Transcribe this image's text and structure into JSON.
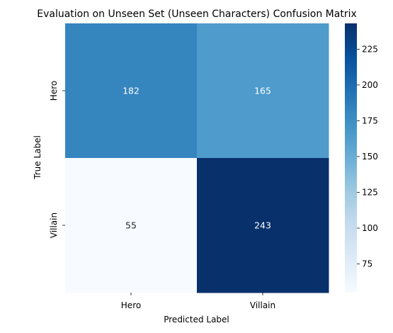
{
  "chart_data": {
    "type": "heatmap",
    "title": "Evaluation on Unseen Set (Unseen Characters) Confusion Matrix",
    "xlabel": "Predicted Label",
    "ylabel": "True Label",
    "x_categories": [
      "Hero",
      "Villain"
    ],
    "y_categories": [
      "Hero",
      "Villain"
    ],
    "values": [
      [
        182,
        165
      ],
      [
        55,
        243
      ]
    ],
    "colormap": "Blues",
    "colorbar": {
      "range": [
        55,
        243
      ],
      "ticks": [
        75,
        100,
        125,
        150,
        175,
        200,
        225
      ]
    },
    "grid": false
  }
}
